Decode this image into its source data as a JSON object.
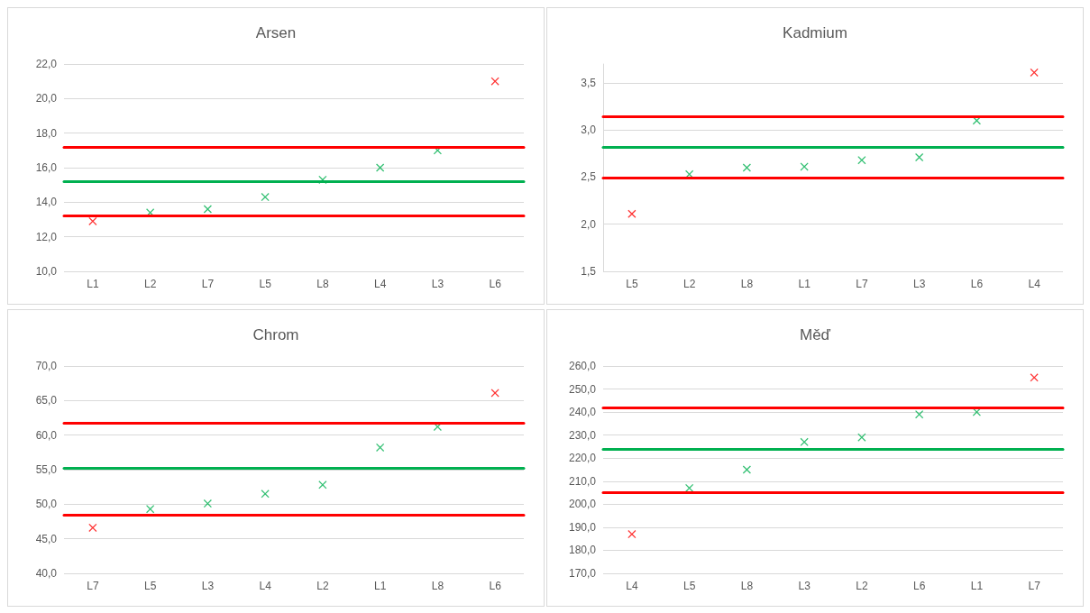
{
  "chart_data": [
    {
      "type": "scatter",
      "title": "Arsen",
      "categories": [
        "L1",
        "L2",
        "L7",
        "L5",
        "L8",
        "L4",
        "L3",
        "L6"
      ],
      "values": [
        12.9,
        13.4,
        13.6,
        14.3,
        15.3,
        16.0,
        17.0,
        21.0
      ],
      "colors": [
        "#ff0000",
        "#00b050",
        "#00b050",
        "#00b050",
        "#00b050",
        "#00b050",
        "#00b050",
        "#ff0000"
      ],
      "marker": "cross",
      "grid": "y",
      "ylim": [
        10,
        22
      ],
      "yticks": [
        {
          "value": 10,
          "label": "10,0"
        },
        {
          "value": 12,
          "label": "12,0"
        },
        {
          "value": 14,
          "label": "14,0"
        },
        {
          "value": 16,
          "label": "16,0"
        },
        {
          "value": 18,
          "label": "18,0"
        },
        {
          "value": 20,
          "label": "20,0"
        },
        {
          "value": 22,
          "label": "22,0"
        }
      ],
      "ref_lines": [
        {
          "axis": "y",
          "value": 17.2,
          "color": "#ff0000"
        },
        {
          "axis": "y",
          "value": 15.2,
          "color": "#00b050"
        },
        {
          "axis": "y",
          "value": 13.2,
          "color": "#ff0000"
        }
      ]
    },
    {
      "type": "scatter",
      "title": "Kadmium",
      "categories": [
        "L5",
        "L2",
        "L8",
        "L1",
        "L7",
        "L3",
        "L6",
        "L4"
      ],
      "values": [
        2.11,
        2.53,
        2.6,
        2.61,
        2.68,
        2.71,
        3.1,
        3.61
      ],
      "colors": [
        "#ff0000",
        "#00b050",
        "#00b050",
        "#00b050",
        "#00b050",
        "#00b050",
        "#00b050",
        "#ff0000"
      ],
      "marker": "cross",
      "grid": "y",
      "ylim": [
        1.5,
        3.7
      ],
      "yticks": [
        {
          "value": 1.5,
          "label": "1,5"
        },
        {
          "value": 2.0,
          "label": "2,0"
        },
        {
          "value": 2.5,
          "label": "2,5"
        },
        {
          "value": 3.0,
          "label": "3,0"
        },
        {
          "value": 3.5,
          "label": "3,5"
        }
      ],
      "ref_lines": [
        {
          "axis": "y",
          "value": 3.14,
          "color": "#ff0000"
        },
        {
          "axis": "y",
          "value": 2.82,
          "color": "#00b050"
        },
        {
          "axis": "y",
          "value": 2.49,
          "color": "#ff0000"
        }
      ]
    },
    {
      "type": "scatter",
      "title": "Chrom",
      "categories": [
        "L7",
        "L5",
        "L3",
        "L4",
        "L2",
        "L1",
        "L8",
        "L6"
      ],
      "values": [
        46.6,
        49.3,
        50.1,
        51.5,
        52.8,
        58.2,
        61.2,
        66.1
      ],
      "colors": [
        "#ff0000",
        "#00b050",
        "#00b050",
        "#00b050",
        "#00b050",
        "#00b050",
        "#00b050",
        "#ff0000"
      ],
      "marker": "cross",
      "grid": "y",
      "ylim": [
        40,
        70
      ],
      "yticks": [
        {
          "value": 40,
          "label": "40,0"
        },
        {
          "value": 45,
          "label": "45,0"
        },
        {
          "value": 50,
          "label": "50,0"
        },
        {
          "value": 55,
          "label": "55,0"
        },
        {
          "value": 60,
          "label": "60,0"
        },
        {
          "value": 65,
          "label": "65,0"
        },
        {
          "value": 70,
          "label": "70,0"
        }
      ],
      "ref_lines": [
        {
          "axis": "y",
          "value": 61.8,
          "color": "#ff0000"
        },
        {
          "axis": "y",
          "value": 55.2,
          "color": "#00b050"
        },
        {
          "axis": "y",
          "value": 48.5,
          "color": "#ff0000"
        }
      ]
    },
    {
      "type": "scatter",
      "title": "Měď",
      "categories": [
        "L4",
        "L5",
        "L8",
        "L3",
        "L2",
        "L6",
        "L1",
        "L7"
      ],
      "values": [
        187,
        207,
        215,
        227,
        229,
        239,
        240,
        255
      ],
      "colors": [
        "#ff0000",
        "#00b050",
        "#00b050",
        "#00b050",
        "#00b050",
        "#00b050",
        "#00b050",
        "#ff0000"
      ],
      "marker": "cross",
      "grid": "y",
      "ylim": [
        170,
        260
      ],
      "yticks": [
        {
          "value": 170,
          "label": "170,0"
        },
        {
          "value": 180,
          "label": "180,0"
        },
        {
          "value": 190,
          "label": "190,0"
        },
        {
          "value": 200,
          "label": "200,0"
        },
        {
          "value": 210,
          "label": "210,0"
        },
        {
          "value": 220,
          "label": "220,0"
        },
        {
          "value": 230,
          "label": "230,0"
        },
        {
          "value": 240,
          "label": "240,0"
        },
        {
          "value": 250,
          "label": "250,0"
        },
        {
          "value": 260,
          "label": "260,0"
        }
      ],
      "ref_lines": [
        {
          "axis": "y",
          "value": 242,
          "color": "#ff0000"
        },
        {
          "axis": "y",
          "value": 224,
          "color": "#00b050"
        },
        {
          "axis": "y",
          "value": 205,
          "color": "#ff0000"
        }
      ]
    }
  ]
}
